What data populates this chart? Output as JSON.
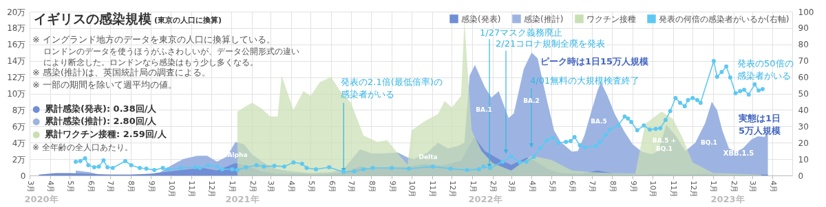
{
  "chart_data": {
    "type": "area",
    "title": "イギリスの感染規模",
    "subtitle": "(東京の人口に換算)",
    "xlim": [
      "2020-03-01",
      "2023-05-01"
    ],
    "xticks": [
      {
        "value": "2020-03-01",
        "label": "3月"
      },
      {
        "value": "2020-04-01",
        "label": "4月"
      },
      {
        "value": "2020-05-01",
        "label": "5月"
      },
      {
        "value": "2020-06-01",
        "label": "6月"
      },
      {
        "value": "2020-07-01",
        "label": "7月"
      },
      {
        "value": "2020-08-01",
        "label": "8月"
      },
      {
        "value": "2020-09-01",
        "label": "9月"
      },
      {
        "value": "2020-10-01",
        "label": "10月"
      },
      {
        "value": "2020-11-01",
        "label": "11月"
      },
      {
        "value": "2020-12-01",
        "label": "12月"
      },
      {
        "value": "2021-01-01",
        "label": "1月"
      },
      {
        "value": "2021-02-01",
        "label": "2月"
      },
      {
        "value": "2021-03-01",
        "label": "3月"
      },
      {
        "value": "2021-04-01",
        "label": "4月"
      },
      {
        "value": "2021-05-01",
        "label": "5月"
      },
      {
        "value": "2021-06-01",
        "label": "6月"
      },
      {
        "value": "2021-07-01",
        "label": "7月"
      },
      {
        "value": "2021-08-01",
        "label": "8月"
      },
      {
        "value": "2021-09-01",
        "label": "9月"
      },
      {
        "value": "2021-10-01",
        "label": "10月"
      },
      {
        "value": "2021-11-01",
        "label": "11月"
      },
      {
        "value": "2021-12-01",
        "label": "12月"
      },
      {
        "value": "2022-01-01",
        "label": "1月"
      },
      {
        "value": "2022-02-01",
        "label": "2月"
      },
      {
        "value": "2022-03-01",
        "label": "3月"
      },
      {
        "value": "2022-04-01",
        "label": "4月"
      },
      {
        "value": "2022-05-01",
        "label": "5月"
      },
      {
        "value": "2022-06-01",
        "label": "6月"
      },
      {
        "value": "2022-07-01",
        "label": "7月"
      },
      {
        "value": "2022-08-01",
        "label": "8月"
      },
      {
        "value": "2022-09-01",
        "label": "9月"
      },
      {
        "value": "2022-10-01",
        "label": "10月"
      },
      {
        "value": "2022-11-01",
        "label": "11月"
      },
      {
        "value": "2022-12-01",
        "label": "12月"
      },
      {
        "value": "2023-01-01",
        "label": "1月"
      },
      {
        "value": "2023-02-01",
        "label": "2月"
      },
      {
        "value": "2023-03-01",
        "label": "3月"
      },
      {
        "value": "2023-04-01",
        "label": "4月"
      }
    ],
    "ylim": [
      0,
      20
    ],
    "yticks": [
      0,
      {
        "value": 2,
        "label": "2万"
      },
      {
        "value": 4,
        "label": "4万"
      },
      {
        "value": 6,
        "label": "6万"
      },
      {
        "value": 8,
        "label": "8万"
      },
      {
        "value": 10,
        "label": "10万"
      },
      {
        "value": 12,
        "label": "12万"
      },
      {
        "value": 14,
        "label": "14万"
      },
      {
        "value": 16,
        "label": "16万"
      },
      {
        "value": 18,
        "label": "18万"
      },
      {
        "value": 20,
        "label": "20万"
      }
    ],
    "y2lim": [
      0,
      100
    ],
    "y2ticks": [
      0,
      10,
      20,
      30,
      40,
      50,
      60,
      70,
      80,
      90,
      100
    ],
    "grid": true,
    "legend": "top right",
    "series": [
      {
        "name": "感染(発表)",
        "color": "#6f8ed6",
        "x": [
          "2020-03-15",
          "2020-04-10",
          "2020-05-01",
          "2020-06-01",
          "2020-07-01",
          "2020-08-01",
          "2020-09-01",
          "2020-10-01",
          "2020-11-01",
          "2020-11-20",
          "2020-12-10",
          "2021-01-07",
          "2021-01-25",
          "2021-02-15",
          "2021-03-10",
          "2021-04-15",
          "2021-05-15",
          "2021-06-15",
          "2021-07-15",
          "2021-08-01",
          "2021-08-20",
          "2021-09-10",
          "2021-10-01",
          "2021-10-20",
          "2021-11-15",
          "2021-12-15",
          "2022-01-04",
          "2022-01-20",
          "2022-02-10",
          "2022-03-01",
          "2022-03-25",
          "2022-04-05",
          "2022-04-25",
          "2022-05-15",
          "2022-06-15",
          "2022-07-10",
          "2022-08-05",
          "2022-09-15",
          "2022-10-15",
          "2022-11-15",
          "2022-12-20",
          "2023-01-15",
          "2023-03-25"
        ],
        "values": [
          0.1,
          0.3,
          0.3,
          0.2,
          0.1,
          0.1,
          0.2,
          0.5,
          0.8,
          0.9,
          0.6,
          1.5,
          1.2,
          0.5,
          0.2,
          0.2,
          0.1,
          0.3,
          1.1,
          0.8,
          1,
          1,
          1.1,
          1.4,
          1.2,
          1.8,
          4.7,
          3,
          2,
          1.3,
          2.2,
          1.8,
          0.8,
          0.3,
          0.2,
          0.6,
          0.2,
          0.1,
          0.2,
          0.1,
          0.2,
          0.1,
          0.1
        ]
      },
      {
        "name": "感染(推計)",
        "color": "#9db4e2",
        "x": [
          "2020-05-10",
          "2020-05-31",
          "2020-06-15",
          "2020-07-01",
          "2020-08-01",
          "2020-09-01",
          "2020-09-15",
          "2020-10-01",
          "2020-10-20",
          "2020-11-10",
          "2020-11-25",
          "2020-12-10",
          "2020-12-25",
          "2021-01-07",
          "2021-01-20",
          "2021-02-01",
          "2021-02-20",
          "2021-03-10",
          "2021-04-01",
          "2021-05-01",
          "2021-06-01",
          "2021-06-20",
          "2021-07-15",
          "2021-08-01",
          "2021-08-20",
          "2021-09-10",
          "2021-09-25",
          "2021-10-05",
          "2021-10-25",
          "2021-11-10",
          "2021-11-25",
          "2021-12-10",
          "2021-12-20",
          "2021-12-28",
          "2022-01-05",
          "2022-01-20",
          "2022-01-30",
          "2022-02-10",
          "2022-02-25",
          "2022-03-05",
          "2022-03-20",
          "2022-04-01",
          "2022-04-10",
          "2022-04-25",
          "2022-05-05",
          "2022-05-15",
          "2022-06-01",
          "2022-06-10",
          "2022-06-20",
          "2022-07-01",
          "2022-07-10",
          "2022-07-15",
          "2022-07-25",
          "2022-08-05",
          "2022-08-20",
          "2022-09-01",
          "2022-09-15",
          "2022-09-30",
          "2022-10-10",
          "2022-10-22",
          "2022-11-05",
          "2022-11-20",
          "2022-12-05",
          "2022-12-20",
          "2022-12-30",
          "2023-01-07",
          "2023-01-15",
          "2023-01-25",
          "2023-02-05",
          "2023-02-15",
          "2023-02-28",
          "2023-03-10",
          "2023-03-20",
          "2023-03-25"
        ],
        "values": [
          0.6,
          0.4,
          0.1,
          0.1,
          0.1,
          0.2,
          0.4,
          1.2,
          2,
          2.4,
          2.4,
          1.7,
          2.3,
          4.1,
          3.8,
          2.6,
          1.5,
          0.8,
          0.5,
          0.3,
          0.4,
          0.8,
          3.2,
          2.7,
          2.7,
          2.8,
          2.2,
          2,
          2.8,
          4,
          3.3,
          3.6,
          4,
          12.2,
          13.5,
          10.8,
          9.5,
          10.3,
          7,
          7.6,
          13,
          15,
          14.3,
          8.9,
          5.5,
          4.1,
          2.9,
          3,
          4.9,
          8,
          10.4,
          11.4,
          9.7,
          7.5,
          5.3,
          3.8,
          2.9,
          2.6,
          3,
          6.2,
          4.9,
          3,
          4,
          6.4,
          9,
          8,
          5.5,
          3.3,
          2.9,
          3.3,
          4.4,
          4.8,
          4.7,
          5.3
        ]
      },
      {
        "name": "ワクチン接種",
        "color": "#c9dfb3",
        "x": [
          "2021-01-10",
          "2021-02-01",
          "2021-02-15",
          "2021-03-01",
          "2021-03-12",
          "2021-03-18",
          "2021-04-05",
          "2021-04-20",
          "2021-05-01",
          "2021-05-15",
          "2021-06-01",
          "2021-06-15",
          "2021-07-01",
          "2021-07-20",
          "2021-08-10",
          "2021-08-25",
          "2021-09-15",
          "2021-09-25",
          "2021-10-01",
          "2021-10-20",
          "2021-11-10",
          "2021-11-20",
          "2021-12-01",
          "2021-12-15",
          "2021-12-20",
          "2021-12-31",
          "2022-01-15",
          "2022-02-01",
          "2022-03-01",
          "2022-04-01",
          "2022-05-01",
          "2022-06-01",
          "2022-07-01",
          "2022-08-01",
          "2022-09-05",
          "2022-09-20",
          "2022-10-15",
          "2022-11-01",
          "2022-11-15",
          "2022-12-01",
          "2023-01-01",
          "2023-02-01",
          "2023-03-15"
        ],
        "values": [
          7.8,
          8.9,
          8.2,
          7.2,
          7.2,
          12.2,
          8,
          10.3,
          9.7,
          11.4,
          12,
          10.3,
          8.9,
          4.9,
          4.1,
          4.3,
          2.2,
          1.3,
          5.5,
          6.6,
          7.5,
          9.1,
          8.3,
          9.7,
          18.9,
          5.5,
          3,
          1.5,
          0.6,
          2.4,
          1.9,
          0.6,
          0.4,
          0.3,
          0.2,
          6.3,
          7.8,
          6.9,
          4.7,
          1.6,
          0.3,
          0.2,
          0.1
        ]
      },
      {
        "name": "発表の何倍の感染者がいるか(右軸)",
        "color": "#5ec8f2",
        "type": "line",
        "axis": "y2",
        "marker": "circle",
        "x": [
          "2020-05-10",
          "2020-05-17",
          "2020-05-24",
          "2020-05-29",
          "2020-06-07",
          "2020-06-14",
          "2020-06-21",
          "2020-06-27",
          "2020-07-05",
          "2020-07-24",
          "2020-08-02",
          "2020-08-15",
          "2020-08-25",
          "2020-09-06",
          "2020-09-19",
          "2020-09-27",
          "2020-10-16",
          "2020-11-07",
          "2020-11-14",
          "2020-11-27",
          "2020-12-10",
          "2020-12-18",
          "2021-01-02",
          "2021-01-10",
          "2021-01-23",
          "2021-02-08",
          "2021-02-19",
          "2021-03-07",
          "2021-03-22",
          "2021-04-05",
          "2021-04-18",
          "2021-04-25",
          "2021-05-09",
          "2021-05-29",
          "2021-06-20",
          "2021-07-06",
          "2021-07-20",
          "2021-08-03",
          "2021-09-01",
          "2021-09-27",
          "2021-11-02",
          "2021-11-29",
          "2021-12-24",
          "2022-01-11",
          "2022-01-18",
          "2022-01-28",
          "2022-02-16",
          "2022-03-01",
          "2022-03-14",
          "2022-03-24",
          "2022-04-04",
          "2022-04-14",
          "2022-04-24",
          "2022-05-03",
          "2022-05-11",
          "2022-05-23",
          "2022-05-30",
          "2022-06-05",
          "2022-06-13",
          "2022-06-21",
          "2022-07-07",
          "2022-07-14",
          "2022-07-22",
          "2022-07-29",
          "2022-08-10",
          "2022-08-20",
          "2022-08-25",
          "2022-08-30",
          "2022-09-08",
          "2022-09-18",
          "2022-09-27",
          "2022-10-06",
          "2022-10-13",
          "2022-10-21",
          "2022-10-28",
          "2022-11-05",
          "2022-11-12",
          "2022-11-19",
          "2022-11-24",
          "2022-12-01",
          "2022-12-08",
          "2022-12-13",
          "2023-01-02",
          "2023-01-07",
          "2023-01-14",
          "2023-01-21",
          "2023-01-27",
          "2023-02-04",
          "2023-02-11",
          "2023-02-17",
          "2023-02-24",
          "2023-03-05",
          "2023-03-11",
          "2023-03-17"
        ],
        "values": [
          8.4,
          8.8,
          10.5,
          6.3,
          5,
          5.4,
          9.2,
          5,
          4.6,
          8.8,
          6.3,
          4.6,
          4.2,
          3.3,
          4.6,
          3.8,
          4.6,
          5,
          4.6,
          6.3,
          5.4,
          3.8,
          3.8,
          3.3,
          5,
          6.3,
          5.4,
          5.9,
          5.4,
          8,
          7.1,
          4.6,
          3.8,
          5,
          2.1,
          2.5,
          3.8,
          4.6,
          4.6,
          4.2,
          5.4,
          4.2,
          3.3,
          3.8,
          5.4,
          4.6,
          8.4,
          11.7,
          8,
          8.4,
          11.3,
          16.7,
          21.3,
          23,
          20,
          20.5,
          21,
          23.4,
          18.4,
          17.2,
          18,
          20.5,
          24.7,
          28,
          30.5,
          36,
          34.7,
          32.6,
          27.6,
          30.5,
          28,
          28.5,
          28.9,
          33.9,
          39.3,
          47.3,
          44.4,
          42.3,
          46,
          47.3,
          46,
          44.4,
          69.9,
          60.3,
          63.2,
          66.5,
          59.8,
          50.2,
          51.5,
          52.3,
          49.4,
          55.6,
          51.9,
          52.7
        ]
      }
    ],
    "annotations": [
      "※ イングランド地方のデータを東京の人口に換算している。",
      "ロンドンのデータを使うほうがふさわしいが、データ公開形式の違い",
      "により断念した。ロンドンなら感染はもう少し多くなる。",
      "※ 感染(推計)は、英国統計局の調査による。",
      "※ 一部の期間を除いて週平均の値。",
      "● 累計感染(発表): 0.38回/人",
      "● 累計感染(推計): 2.80回/人",
      "● 累計ワクチン接種: 2.59回/人",
      "※ 全年齢の全人口あたり。",
      "ピーク時は1日15万人規模",
      "発表の50倍の",
      "感染者がいる",
      "実態は1日",
      "5万人規模",
      "2020年",
      "2021年",
      "2022年",
      "2023年",
      {
        "text": "感染者がいる",
        "x": "2021-06-20",
        "y": 0.42
      },
      "発表の2.1倍(最低倍率)の",
      {
        "text": "1/27マスク義務廃止",
        "x": "2022-01-27",
        "y": 0.92
      },
      "2/21コロナ規制全廃を発表",
      "4/01無料の大規模検査終了",
      "Alpha",
      "Delta",
      "BA.1",
      "BA.2",
      "BA.5",
      "BA.5 +",
      "BQ.1",
      "BQ.1",
      "XBB.1.5"
    ]
  }
}
